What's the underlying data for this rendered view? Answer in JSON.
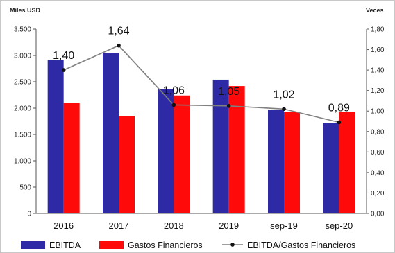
{
  "chart_data": {
    "type": "bar",
    "categories": [
      "2016",
      "2017",
      "2018",
      "2019",
      "sep-19",
      "sep-20"
    ],
    "series": [
      {
        "name": "EBITDA",
        "kind": "bar",
        "axis": "left",
        "color": "#2E2AA6",
        "values": [
          2920,
          3040,
          2360,
          2540,
          1970,
          1720
        ]
      },
      {
        "name": "Gastos Financieros",
        "kind": "bar",
        "axis": "left",
        "color": "#FF0A0A",
        "values": [
          2100,
          1850,
          2240,
          2420,
          1930,
          1930
        ]
      },
      {
        "name": "EBITDA/Gastos Financieros",
        "kind": "line",
        "axis": "right",
        "color": "#808080",
        "marker_color": "#111111",
        "values": [
          1.4,
          1.64,
          1.06,
          1.05,
          1.02,
          0.89
        ],
        "labels": [
          "1,40",
          "1,64",
          "1,06",
          "1,05",
          "1,02",
          "0,89"
        ]
      }
    ],
    "left_axis": {
      "unit": "Miles USD",
      "ylim": [
        0,
        3500
      ],
      "ticks": [
        0,
        500,
        1000,
        1500,
        2000,
        2500,
        3000,
        3500
      ],
      "tick_labels": [
        "0",
        "500",
        "1.000",
        "1.500",
        "2.000",
        "2.500",
        "3.000",
        "3.500"
      ]
    },
    "right_axis": {
      "unit": "Veces",
      "ylim": [
        0,
        1.8
      ],
      "ticks": [
        0,
        0.2,
        0.4,
        0.6,
        0.8,
        1.0,
        1.2,
        1.4,
        1.6,
        1.8
      ],
      "tick_labels": [
        "0,00",
        "0,20",
        "0,40",
        "0,60",
        "0,80",
        "1,00",
        "1,20",
        "1,40",
        "1,60",
        "1,80"
      ]
    },
    "grid": false,
    "legend": "bottom",
    "legend_labels": [
      "EBITDA",
      "Gastos Financieros",
      "EBITDA/Gastos Financieros"
    ]
  }
}
